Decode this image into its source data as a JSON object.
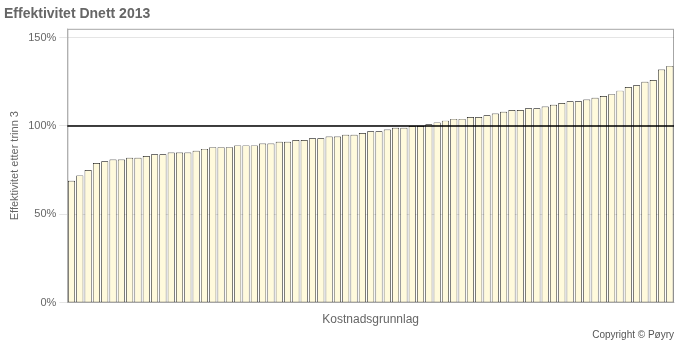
{
  "chart_data": {
    "type": "bar",
    "title": "Effektivitet Dnett 2013",
    "xlabel": "Kostnadsgrunnlag",
    "ylabel": "Effektivitet etter trinn 3",
    "annotations": [
      "Copyright © Pøyry"
    ],
    "color": "#FFFADC",
    "reference_line": 1.0,
    "ylim": [
      0.0,
      1.55
    ],
    "yticks": [
      {
        "value": 0.0,
        "label": "0%"
      },
      {
        "value": 0.5,
        "label": "50%"
      },
      {
        "value": 1.0,
        "label": "100%"
      },
      {
        "value": 1.5,
        "label": "150%"
      }
    ],
    "grid": true,
    "tick_labels": "y",
    "categories": [
      null,
      null,
      null,
      null,
      null,
      null,
      null,
      null,
      null,
      null,
      null,
      null,
      null,
      null,
      null,
      null,
      null,
      null,
      null,
      null,
      null,
      null,
      null,
      null,
      null,
      null,
      null,
      null,
      null,
      null,
      null,
      null,
      null,
      null,
      null,
      null,
      null,
      null,
      null,
      null,
      null,
      null,
      null,
      null,
      null,
      null,
      null,
      null,
      null,
      null,
      null,
      null,
      null,
      null,
      null,
      null,
      null,
      null,
      null,
      null,
      null,
      null,
      null,
      null,
      null,
      null,
      null,
      null,
      null,
      null,
      null,
      null,
      null
    ],
    "values": [
      0.69,
      0.72,
      0.75,
      0.79,
      0.8,
      0.81,
      0.81,
      0.82,
      0.82,
      0.83,
      0.84,
      0.84,
      0.85,
      0.85,
      0.85,
      0.86,
      0.87,
      0.88,
      0.88,
      0.88,
      0.89,
      0.89,
      0.89,
      0.9,
      0.9,
      0.91,
      0.91,
      0.92,
      0.92,
      0.93,
      0.93,
      0.94,
      0.94,
      0.95,
      0.95,
      0.96,
      0.97,
      0.97,
      0.98,
      0.99,
      0.99,
      1.0,
      1.0,
      1.01,
      1.02,
      1.03,
      1.04,
      1.04,
      1.05,
      1.05,
      1.06,
      1.07,
      1.08,
      1.09,
      1.09,
      1.1,
      1.1,
      1.11,
      1.12,
      1.13,
      1.14,
      1.14,
      1.15,
      1.16,
      1.17,
      1.18,
      1.2,
      1.22,
      1.23,
      1.25,
      1.26,
      1.32,
      1.34
    ]
  }
}
